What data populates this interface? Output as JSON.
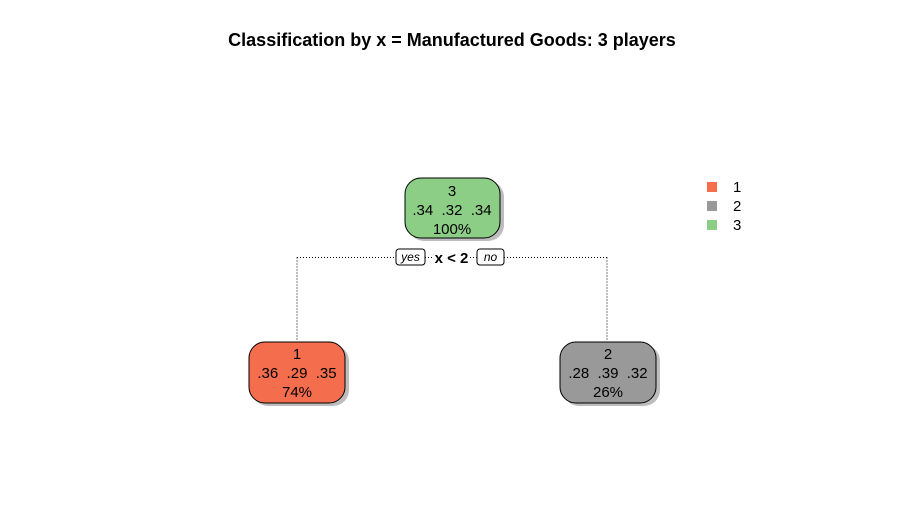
{
  "title": "Classification by x = Manufactured Goods: 3 players",
  "colors": {
    "class_1": "#F46D4D",
    "class_2": "#999999",
    "class_3": "#8CCE86",
    "shadow": "#BDBDBD"
  },
  "tree": {
    "root": {
      "class_label": "3",
      "probs": ".34  .32  .34",
      "percent": "100%"
    },
    "split": {
      "rule": "x < 2",
      "yes_label": "yes",
      "no_label": "no"
    },
    "left": {
      "class_label": "1",
      "probs": ".36  .29  .35",
      "percent": "74%"
    },
    "right": {
      "class_label": "2",
      "probs": ".28  .39  .32",
      "percent": "26%"
    }
  },
  "legend": {
    "items": [
      {
        "label": "1",
        "color": "#F46D4D"
      },
      {
        "label": "2",
        "color": "#999999"
      },
      {
        "label": "3",
        "color": "#8CCE86"
      }
    ]
  }
}
